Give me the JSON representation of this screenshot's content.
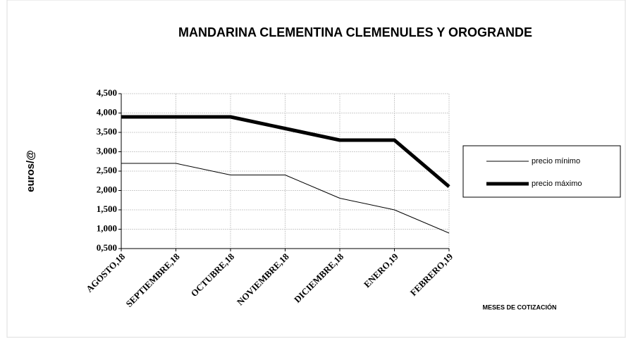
{
  "chart_data": {
    "type": "line",
    "title": "MANDARINA CLEMENTINA CLEMENULES Y OROGRANDE",
    "y_label": "euros/@",
    "x_label": "MESES DE COTIZACIÓN",
    "categories": [
      "AGOSTO,18",
      "SEPTIEMBRE,18",
      "OCTUBRE,18",
      "NOVIEMBRE,18",
      "DICIEMBRE,18",
      "ENERO,19",
      "FEBRERO,19"
    ],
    "series": [
      {
        "name": "precio mínimo",
        "color": "#000000",
        "width": 1,
        "values": [
          2.7,
          2.7,
          2.4,
          2.4,
          1.8,
          1.5,
          0.9
        ]
      },
      {
        "name": "precio máximo",
        "color": "#000000",
        "width": 5,
        "values": [
          3.9,
          3.9,
          3.9,
          3.6,
          3.3,
          3.3,
          2.1
        ]
      }
    ],
    "ylim": [
      0.5,
      4.5
    ],
    "yticks": [
      {
        "value": 0.5,
        "label": "0,500"
      },
      {
        "value": 1,
        "label": "1,000"
      },
      {
        "value": 1.5,
        "label": "1,500"
      },
      {
        "value": 2,
        "label": "2,000"
      },
      {
        "value": 2.5,
        "label": "2,500"
      },
      {
        "value": 3,
        "label": "3,000"
      },
      {
        "value": 3.5,
        "label": "3,500"
      },
      {
        "value": 4,
        "label": "4,000"
      },
      {
        "value": 4.5,
        "label": "4,500"
      }
    ],
    "grid": true,
    "legend": "right"
  }
}
